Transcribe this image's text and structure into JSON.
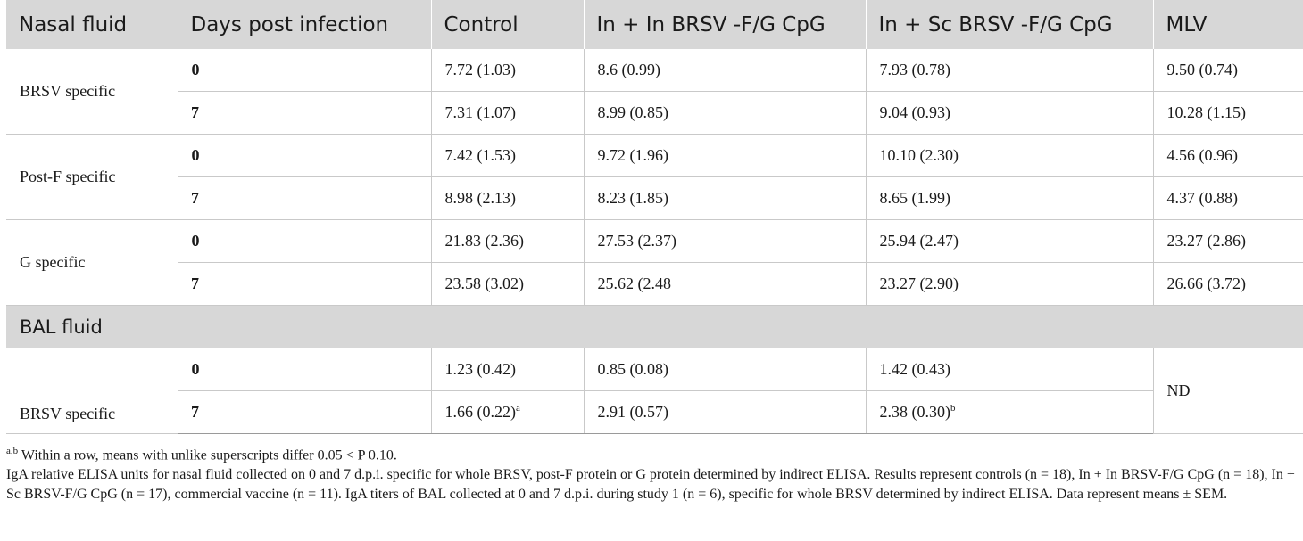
{
  "header": {
    "col1": "Nasal fluid",
    "col2": "Days post infection",
    "col3": "Control",
    "col4": "In + In BRSV -F/G CpG",
    "col5": "In + Sc BRSV -F/G CpG",
    "col6": "MLV"
  },
  "nasal": [
    {
      "label": "BRSV specific",
      "rows": [
        {
          "day": "0",
          "control": "7.72 (1.03)",
          "inin": "8.6 (0.99)",
          "insc": "7.93 (0.78)",
          "mlv": "9.50 (0.74)"
        },
        {
          "day": "7",
          "control": "7.31 (1.07)",
          "inin": "8.99 (0.85)",
          "insc": "9.04 (0.93)",
          "mlv": "10.28 (1.15)"
        }
      ]
    },
    {
      "label": "Post-F specific",
      "rows": [
        {
          "day": "0",
          "control": "7.42 (1.53)",
          "inin": "9.72 (1.96)",
          "insc": "10.10 (2.30)",
          "mlv": "4.56 (0.96)"
        },
        {
          "day": "7",
          "control": "8.98 (2.13)",
          "inin": "8.23 (1.85)",
          "insc": "8.65 (1.99)",
          "mlv": "4.37 (0.88)"
        }
      ]
    },
    {
      "label": "G specific",
      "rows": [
        {
          "day": "0",
          "control": "21.83 (2.36)",
          "inin": "27.53 (2.37)",
          "insc": "25.94 (2.47)",
          "mlv": "23.27 (2.86)"
        },
        {
          "day": "7",
          "control": "23.58 (3.02)",
          "inin": "25.62 (2.48",
          "insc": "23.27 (2.90)",
          "mlv": "26.66 (3.72)"
        }
      ]
    }
  ],
  "bal": {
    "section_title": "BAL fluid",
    "label": "BRSV specific",
    "mlv": "ND",
    "rows": [
      {
        "day": "0",
        "control": "1.23 (0.42)",
        "control_sup": "",
        "inin": "0.85 (0.08)",
        "insc": "1.42 (0.43)",
        "insc_sup": ""
      },
      {
        "day": "7",
        "control": "1.66 (0.22)",
        "control_sup": "a",
        "inin": "2.91 (0.57)",
        "insc": "2.38 (0.30)",
        "insc_sup": "b"
      }
    ]
  },
  "footnotes": {
    "sup": "a,b",
    "line1": " Within a row, means with unlike superscripts differ 0.05 < P 0.10.",
    "line2": "IgA relative ELISA units for nasal fluid collected on 0 and 7 d.p.i. specific for whole BRSV, post-F protein or G protein determined by indirect ELISA. Results represent controls (n = 18), In + In BRSV-F/G CpG (n = 18), In + Sc BRSV-F/G CpG (n = 17), commercial vaccine (n = 11). IgA titers of BAL collected at 0 and 7 d.p.i. during study 1 (n = 6), specific for whole BRSV determined by indirect ELISA. Data represent means ± SEM."
  }
}
